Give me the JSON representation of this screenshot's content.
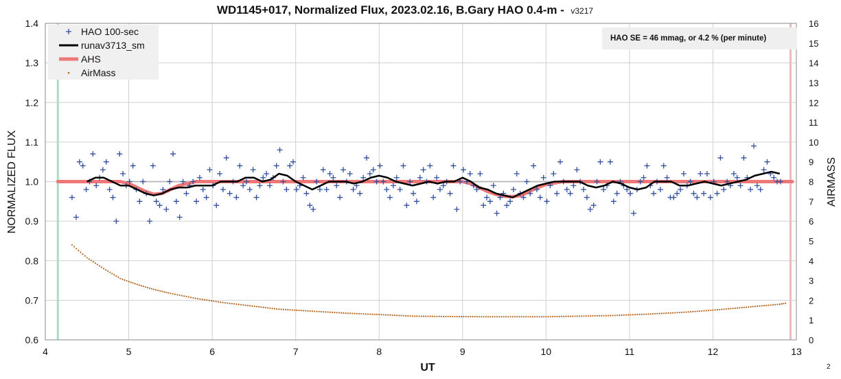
{
  "chart_data": {
    "type": "scatter",
    "title": "WD1145+017, Normalized Flux, 2023.02.16, B.Gary HAO 0.4-m -",
    "title_version": "v3217",
    "xlabel": "UT",
    "ylabel": "NORMALIZED FLUX",
    "y2label": "AIRMASS",
    "xlim": [
      4,
      13
    ],
    "ylim": [
      0.6,
      1.4
    ],
    "y2lim": [
      0,
      16
    ],
    "x_ticks": [
      "4",
      "5",
      "6",
      "7",
      "8",
      "9",
      "10",
      "11",
      "12",
      "13"
    ],
    "y_ticks": [
      "0.6",
      "0.7",
      "0.8",
      "0.9",
      "1.0",
      "1.1",
      "1.2",
      "1.3",
      "1.4"
    ],
    "y2_ticks": [
      "0",
      "1",
      "2",
      "3",
      "4",
      "5",
      "6",
      "7",
      "8",
      "9",
      "10",
      "11",
      "12",
      "13",
      "14",
      "15",
      "16"
    ],
    "grid": true,
    "legend_position": "top-left",
    "annotation": "HAO SE =  46 mmag, or 4.2 % (per minute)",
    "corner_label": "2",
    "reference_line_y": 1.0,
    "vertical_markers": [
      {
        "x": 4.15,
        "color": "#a8dcc0"
      },
      {
        "x": 12.93,
        "color": "#eebbbb"
      }
    ],
    "series": [
      {
        "name": "HAO 100-sec",
        "kind": "points",
        "color": "#2f4f9f",
        "x": [
          4.32,
          4.37,
          4.41,
          4.45,
          4.49,
          4.53,
          4.57,
          4.61,
          4.65,
          4.69,
          4.73,
          4.77,
          4.81,
          4.85,
          4.89,
          4.93,
          4.97,
          5.01,
          5.05,
          5.09,
          5.13,
          5.17,
          5.21,
          5.25,
          5.29,
          5.33,
          5.37,
          5.41,
          5.45,
          5.49,
          5.53,
          5.57,
          5.61,
          5.65,
          5.69,
          5.73,
          5.77,
          5.81,
          5.85,
          5.89,
          5.93,
          5.97,
          6.01,
          6.05,
          6.09,
          6.13,
          6.17,
          6.21,
          6.25,
          6.29,
          6.33,
          6.37,
          6.41,
          6.45,
          6.49,
          6.53,
          6.57,
          6.61,
          6.65,
          6.69,
          6.73,
          6.77,
          6.81,
          6.85,
          6.89,
          6.93,
          6.97,
          7.01,
          7.05,
          7.09,
          7.13,
          7.17,
          7.21,
          7.25,
          7.29,
          7.33,
          7.37,
          7.41,
          7.45,
          7.49,
          7.53,
          7.57,
          7.61,
          7.65,
          7.69,
          7.73,
          7.77,
          7.81,
          7.85,
          7.89,
          7.93,
          7.97,
          8.01,
          8.05,
          8.09,
          8.13,
          8.17,
          8.21,
          8.25,
          8.29,
          8.33,
          8.37,
          8.41,
          8.45,
          8.49,
          8.53,
          8.57,
          8.61,
          8.65,
          8.69,
          8.73,
          8.77,
          8.81,
          8.85,
          8.89,
          8.93,
          8.97,
          9.01,
          9.05,
          9.09,
          9.13,
          9.17,
          9.21,
          9.25,
          9.29,
          9.33,
          9.37,
          9.41,
          9.45,
          9.49,
          9.53,
          9.57,
          9.61,
          9.65,
          9.69,
          9.73,
          9.77,
          9.81,
          9.85,
          9.89,
          9.93,
          9.97,
          10.01,
          10.05,
          10.09,
          10.13,
          10.17,
          10.21,
          10.25,
          10.29,
          10.33,
          10.37,
          10.41,
          10.45,
          10.49,
          10.53,
          10.57,
          10.61,
          10.65,
          10.69,
          10.73,
          10.77,
          10.81,
          10.85,
          10.89,
          10.93,
          10.97,
          11.01,
          11.05,
          11.09,
          11.13,
          11.17,
          11.21,
          11.25,
          11.29,
          11.33,
          11.37,
          11.41,
          11.45,
          11.49,
          11.53,
          11.57,
          11.61,
          11.65,
          11.69,
          11.73,
          11.77,
          11.81,
          11.85,
          11.89,
          11.93,
          11.97,
          12.01,
          12.05,
          12.09,
          12.13,
          12.17,
          12.21,
          12.25,
          12.29,
          12.33,
          12.37,
          12.41,
          12.45,
          12.49,
          12.53,
          12.57,
          12.61,
          12.65,
          12.69,
          12.73,
          12.77,
          12.81
        ],
        "y": [
          0.96,
          0.91,
          1.05,
          1.04,
          0.98,
          1.0,
          1.07,
          0.99,
          1.01,
          1.03,
          1.05,
          0.98,
          0.96,
          0.9,
          1.07,
          1.02,
          0.99,
          1.0,
          1.04,
          0.98,
          0.95,
          1.0,
          0.97,
          0.9,
          1.04,
          0.95,
          0.94,
          0.98,
          0.93,
          1.0,
          1.07,
          0.95,
          0.91,
          1.0,
          0.97,
          0.99,
          1.0,
          0.95,
          1.01,
          0.98,
          0.96,
          1.03,
          0.99,
          0.94,
          1.02,
          0.98,
          1.06,
          0.97,
          1.0,
          0.96,
          1.04,
          0.99,
          1.0,
          0.98,
          1.03,
          0.96,
          0.99,
          1.01,
          1.02,
          0.99,
          1.01,
          1.04,
          1.08,
          1.0,
          0.98,
          1.04,
          1.05,
          0.98,
          0.99,
          1.01,
          0.97,
          0.94,
          0.93,
          1.0,
          0.98,
          1.03,
          0.98,
          1.02,
          1.01,
          0.99,
          0.96,
          1.03,
          1.0,
          1.02,
          0.98,
          0.99,
          0.97,
          1.01,
          1.06,
          1.02,
          1.03,
          1.0,
          1.04,
          1.0,
          0.98,
          0.96,
          0.99,
          1.01,
          0.98,
          1.04,
          0.94,
          1.0,
          0.97,
          0.95,
          1.01,
          1.03,
          1.0,
          1.04,
          0.96,
          1.01,
          0.98,
          0.99,
          1.0,
          0.97,
          1.04,
          0.93,
          1.0,
          1.03,
          1.0,
          1.02,
          0.99,
          0.98,
          1.02,
          0.94,
          0.96,
          0.95,
          0.99,
          0.92,
          0.96,
          0.97,
          0.94,
          0.95,
          0.98,
          1.02,
          0.97,
          0.96,
          1.0,
          0.97,
          1.04,
          0.98,
          0.96,
          1.01,
          0.95,
          0.99,
          1.02,
          0.97,
          1.05,
          1.0,
          0.98,
          0.97,
          0.99,
          1.03,
          1.0,
          0.98,
          0.96,
          0.93,
          0.94,
          1.0,
          1.05,
          0.98,
          0.99,
          1.05,
          0.95,
          0.97,
          1.0,
          0.99,
          0.98,
          0.97,
          0.92,
          0.98,
          1.0,
          1.01,
          1.04,
          0.99,
          0.97,
          1.0,
          0.98,
          1.04,
          1.01,
          0.96,
          0.96,
          0.97,
          0.98,
          1.02,
          0.99,
          1.0,
          0.97,
          0.96,
          1.02,
          0.97,
          1.02,
          0.96,
          1.0,
          0.97,
          1.06,
          0.98,
          1.0,
          0.99,
          1.02,
          1.01,
          0.99,
          1.06,
          1.01,
          0.98,
          1.09,
          0.99,
          0.98,
          1.03,
          1.05,
          1.02,
          1.01,
          1.0,
          1.0
        ]
      },
      {
        "name": "runav3713_sm",
        "kind": "line",
        "color": "#000000",
        "x": [
          4.5,
          4.6,
          4.7,
          4.8,
          4.9,
          5.0,
          5.1,
          5.2,
          5.3,
          5.4,
          5.5,
          5.6,
          5.7,
          5.8,
          5.9,
          6.0,
          6.1,
          6.2,
          6.3,
          6.4,
          6.5,
          6.6,
          6.7,
          6.8,
          6.9,
          7.0,
          7.1,
          7.2,
          7.3,
          7.4,
          7.5,
          7.6,
          7.7,
          7.8,
          7.9,
          8.0,
          8.1,
          8.2,
          8.3,
          8.4,
          8.5,
          8.6,
          8.7,
          8.8,
          8.9,
          9.0,
          9.1,
          9.2,
          9.3,
          9.4,
          9.5,
          9.6,
          9.7,
          9.8,
          9.9,
          10.0,
          10.1,
          10.2,
          10.3,
          10.4,
          10.5,
          10.6,
          10.7,
          10.8,
          10.9,
          11.0,
          11.1,
          11.2,
          11.3,
          11.4,
          11.5,
          11.6,
          11.7,
          11.8,
          11.9,
          12.0,
          12.1,
          12.2,
          12.3,
          12.4,
          12.5,
          12.6,
          12.7,
          12.8
        ],
        "y": [
          1.0,
          1.01,
          1.01,
          1.0,
          0.99,
          0.99,
          0.98,
          0.97,
          0.965,
          0.97,
          0.98,
          0.985,
          0.985,
          0.99,
          0.99,
          0.99,
          1.0,
          1.0,
          1.0,
          1.01,
          1.01,
          1.0,
          1.005,
          1.02,
          1.015,
          1.0,
          0.99,
          0.98,
          0.99,
          1.0,
          1.0,
          1.0,
          0.995,
          1.0,
          1.01,
          1.015,
          1.01,
          1.0,
          0.995,
          0.99,
          0.995,
          1.0,
          0.995,
          1.0,
          1.0,
          1.01,
          1.0,
          0.985,
          0.98,
          0.97,
          0.965,
          0.96,
          0.97,
          0.98,
          0.99,
          0.995,
          1.0,
          1.0,
          1.0,
          1.0,
          0.99,
          0.985,
          0.99,
          1.0,
          0.995,
          0.985,
          0.98,
          0.985,
          1.0,
          1.0,
          1.0,
          0.99,
          0.99,
          0.995,
          1.0,
          0.995,
          0.99,
          0.995,
          1.0,
          1.005,
          1.015,
          1.02,
          1.025,
          1.02
        ]
      },
      {
        "name": "AHS",
        "kind": "thick-line",
        "color": "#ee7777",
        "x": [
          4.15,
          4.9,
          5.0,
          5.1,
          5.2,
          5.3,
          5.4,
          5.5,
          5.6,
          5.8,
          8.8,
          8.9,
          9.0,
          9.1,
          9.2,
          9.3,
          9.4,
          9.5,
          9.6,
          9.7,
          9.8,
          9.9,
          10.0,
          10.2,
          12.95
        ],
        "y": [
          1.0,
          1.0,
          0.995,
          0.985,
          0.975,
          0.968,
          0.97,
          0.98,
          0.99,
          1.0,
          1.0,
          1.0,
          1.0,
          0.995,
          0.985,
          0.975,
          0.968,
          0.963,
          0.962,
          0.965,
          0.975,
          0.985,
          0.993,
          1.0,
          1.0
        ]
      },
      {
        "name": "AirMass",
        "kind": "dots",
        "axis": "right",
        "color": "#b5651d",
        "x": [
          4.32,
          4.5,
          4.7,
          4.9,
          5.1,
          5.3,
          5.5,
          5.8,
          6.1,
          6.4,
          6.8,
          7.2,
          7.6,
          8.0,
          8.4,
          8.8,
          9.2,
          9.6,
          10.0,
          10.4,
          10.8,
          11.2,
          11.6,
          12.0,
          12.4,
          12.8,
          12.87
        ],
        "y": [
          4.8,
          4.15,
          3.6,
          3.1,
          2.8,
          2.55,
          2.35,
          2.1,
          1.9,
          1.75,
          1.55,
          1.45,
          1.35,
          1.28,
          1.2,
          1.18,
          1.17,
          1.17,
          1.17,
          1.2,
          1.23,
          1.3,
          1.38,
          1.5,
          1.65,
          1.8,
          1.85
        ]
      }
    ]
  }
}
